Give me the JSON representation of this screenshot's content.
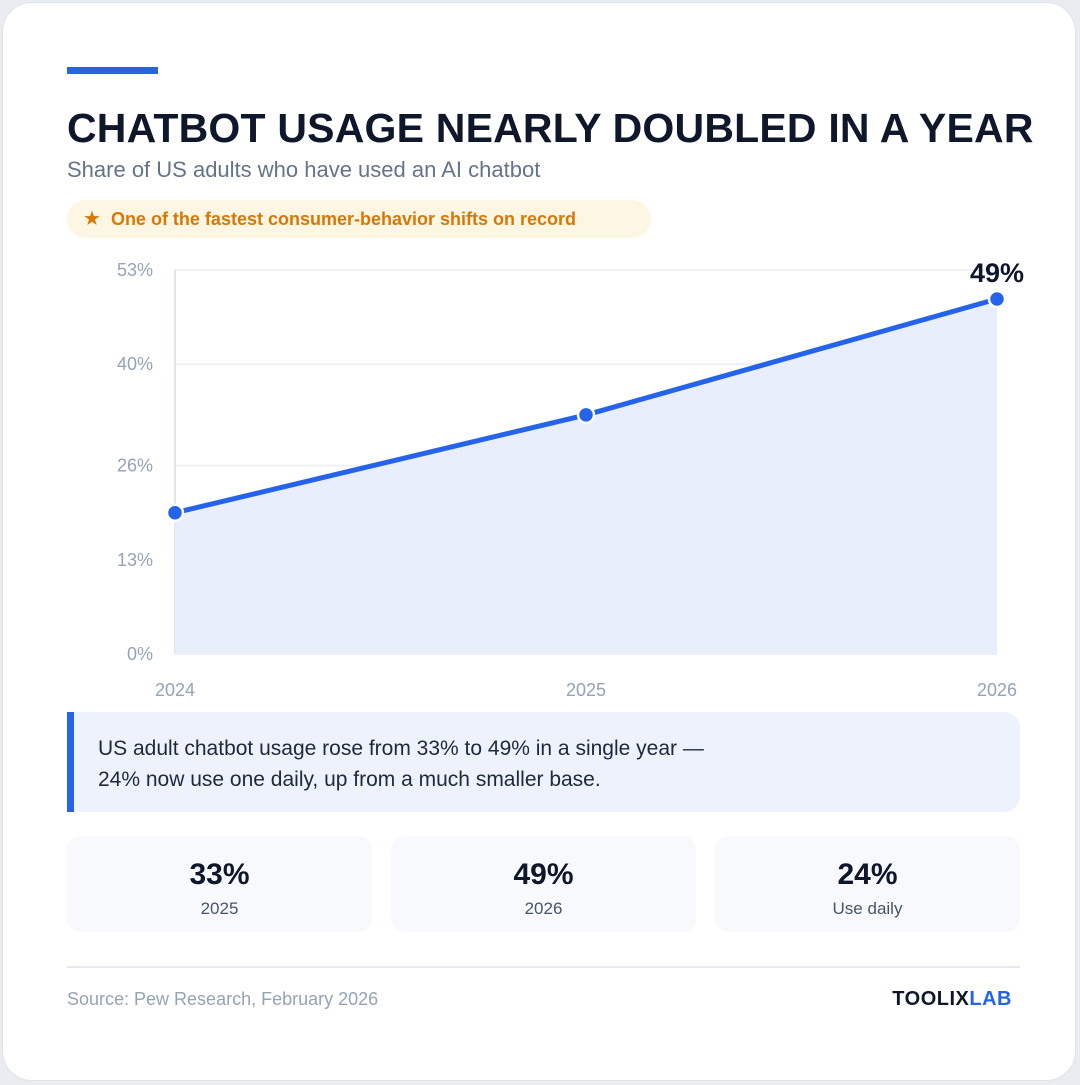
{
  "header": {
    "title": "CHATBOT USAGE NEARLY DOUBLED IN A YEAR",
    "subtitle": "Share of US adults who have used an AI chatbot",
    "highlight": "One of the fastest consumer-behavior shifts on record",
    "highlight_icon": "star-icon"
  },
  "chart_data": {
    "type": "area",
    "x": [
      "2024",
      "2025",
      "2026"
    ],
    "series": [
      {
        "values": [
          19.5,
          33,
          49
        ]
      }
    ],
    "ylim": [
      0,
      53
    ],
    "y_ticks": [
      "0%",
      "13%",
      "26%",
      "40%",
      "53%"
    ],
    "y_tick_values": [
      0,
      13,
      26,
      40,
      53
    ],
    "end_label": "49%",
    "grid": true,
    "colors": {
      "line": "#2563eb",
      "fill": "#e8eefc",
      "grid": "#edf0f4",
      "axis": "#e2e6ec"
    }
  },
  "note": {
    "text": "US adult chatbot usage rose from 33% to 49% in a single year — 24% now use one daily, up from a much smaller base."
  },
  "stats": [
    {
      "value": "33%",
      "label": "2025"
    },
    {
      "value": "49%",
      "label": "2026"
    },
    {
      "value": "24%",
      "label": "Use daily"
    }
  ],
  "footer": {
    "source": "Source: Pew Research, February 2026",
    "brand_part1": "TOOLIX",
    "brand_part2": "LAB"
  },
  "colors": {
    "accent": "#2563eb",
    "highlight": "#d97706",
    "text": "#0f172a"
  }
}
